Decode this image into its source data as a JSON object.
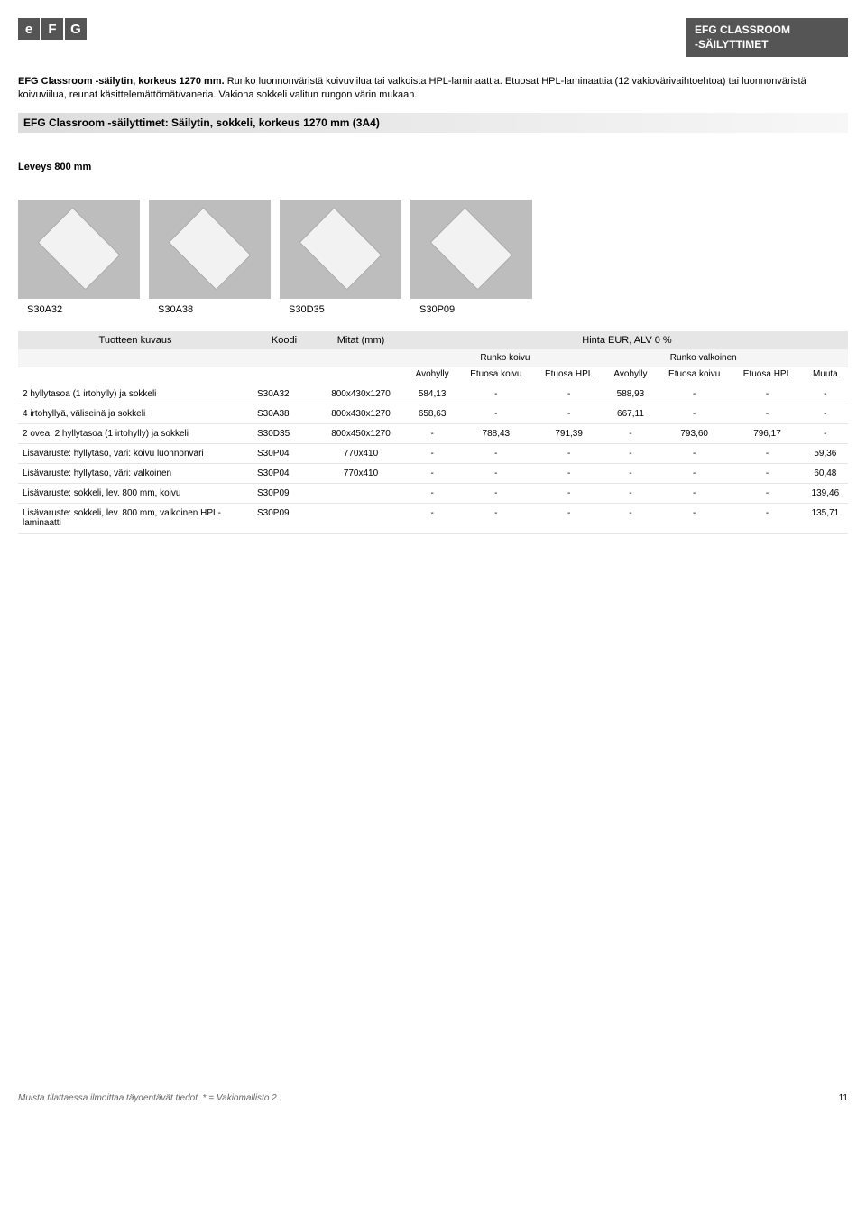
{
  "header": {
    "logo_letters": [
      "e",
      "F",
      "G"
    ],
    "title_line1": "EFG CLASSROOM",
    "title_line2": "-SÄILYTTIMET"
  },
  "intro": {
    "bold": "EFG Classroom -säilytin, korkeus 1270 mm.",
    "rest": " Runko luonnonväristä koivuviilua tai valkoista HPL-laminaattia. Etuosat HPL-laminaattia (12 vakiovärivaihtoehtoa) tai luonnonväristä koivuviilua, reunat käsittelemättömät/vaneria. Vakiona sokkeli valitun rungon värin mukaan."
  },
  "section_bar": "EFG Classroom -säilyttimet: Säilytin, sokkeli, korkeus 1270 mm (3A4)",
  "leveys_label": "Leveys 800 mm",
  "thumbs": [
    {
      "code": "S30A32"
    },
    {
      "code": "S30A38"
    },
    {
      "code": "S30D35"
    },
    {
      "code": "S30P09"
    }
  ],
  "table": {
    "h1_desc": "Tuotteen kuvaus",
    "h1_koodi": "Koodi",
    "h1_mitat": "Mitat (mm)",
    "h1_hinta": "Hinta EUR, ALV 0 %",
    "h2_koivu": "Runko koivu",
    "h2_valkoinen": "Runko valkoinen",
    "h3_avohylly1": "Avohylly",
    "h3_etuosa_koivu1": "Etuosa koivu",
    "h3_etuosa_hpl1": "Etuosa HPL",
    "h3_avohylly2": "Avohylly",
    "h3_etuosa_koivu2": "Etuosa koivu",
    "h3_etuosa_hpl2": "Etuosa HPL",
    "h3_muuta": "Muuta",
    "rows": [
      {
        "desc": "2 hyllytasoa (1 irtohylly) ja sokkeli",
        "koodi": "S30A32",
        "mitat": "800x430x1270",
        "c1": "584,13",
        "c2": "-",
        "c3": "-",
        "c4": "588,93",
        "c5": "-",
        "c6": "-",
        "c7": "-"
      },
      {
        "desc": "4 irtohyllyä, väliseinä ja sokkeli",
        "koodi": "S30A38",
        "mitat": "800x430x1270",
        "c1": "658,63",
        "c2": "-",
        "c3": "-",
        "c4": "667,11",
        "c5": "-",
        "c6": "-",
        "c7": "-"
      },
      {
        "desc": "2 ovea, 2 hyllytasoa (1 irtohylly) ja sokkeli",
        "koodi": "S30D35",
        "mitat": "800x450x1270",
        "c1": "-",
        "c2": "788,43",
        "c3": "791,39",
        "c4": "-",
        "c5": "793,60",
        "c6": "796,17",
        "c7": "-"
      },
      {
        "desc": "Lisävaruste: hyllytaso, väri: koivu luonnonväri",
        "koodi": "S30P04",
        "mitat": "770x410",
        "c1": "-",
        "c2": "-",
        "c3": "-",
        "c4": "-",
        "c5": "-",
        "c6": "-",
        "c7": "59,36"
      },
      {
        "desc": "Lisävaruste: hyllytaso, väri: valkoinen",
        "koodi": "S30P04",
        "mitat": "770x410",
        "c1": "-",
        "c2": "-",
        "c3": "-",
        "c4": "-",
        "c5": "-",
        "c6": "-",
        "c7": "60,48"
      },
      {
        "desc": "Lisävaruste: sokkeli, lev. 800 mm, koivu",
        "koodi": "S30P09",
        "mitat": "",
        "c1": "-",
        "c2": "-",
        "c3": "-",
        "c4": "-",
        "c5": "-",
        "c6": "-",
        "c7": "139,46"
      },
      {
        "desc": "Lisävaruste: sokkeli, lev. 800 mm, valkoinen HPL-laminaatti",
        "koodi": "S30P09",
        "mitat": "",
        "c1": "-",
        "c2": "-",
        "c3": "-",
        "c4": "-",
        "c5": "-",
        "c6": "-",
        "c7": "135,71"
      }
    ]
  },
  "footer": {
    "note": "Muista tilattaessa ilmoittaa täydentävät tiedot. * = Vakiomallisto 2.",
    "page": "11"
  }
}
